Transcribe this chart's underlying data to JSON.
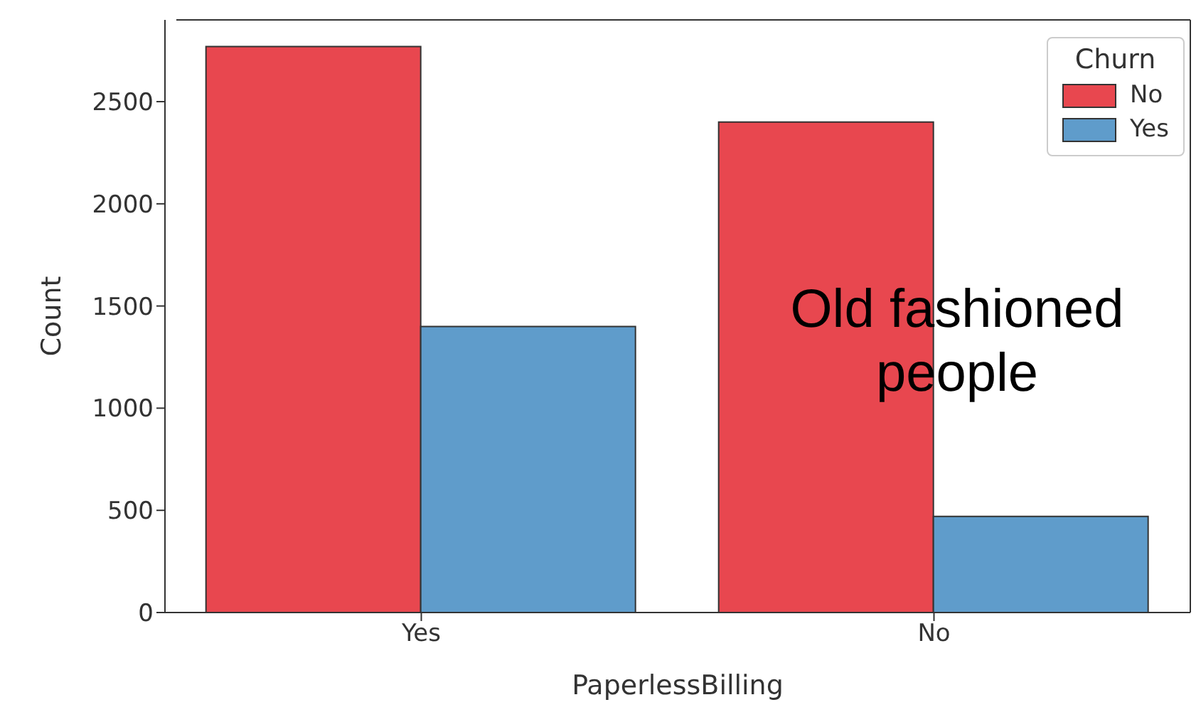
{
  "chart_data": {
    "type": "bar",
    "xlabel": "PaperlessBilling",
    "ylabel": "Count",
    "legend_title": "Churn",
    "categories": [
      "Yes",
      "No"
    ],
    "series": [
      {
        "name": "No",
        "color": "#e8474f",
        "values": [
          2770,
          2400
        ]
      },
      {
        "name": "Yes",
        "color": "#5f9ccb",
        "values": [
          1400,
          470
        ]
      }
    ],
    "ylim": [
      0,
      2900
    ],
    "yticks": [
      0,
      500,
      1000,
      1500,
      2000,
      2500
    ],
    "legend": "top right",
    "annotations": [
      "Old fashioned people"
    ]
  }
}
